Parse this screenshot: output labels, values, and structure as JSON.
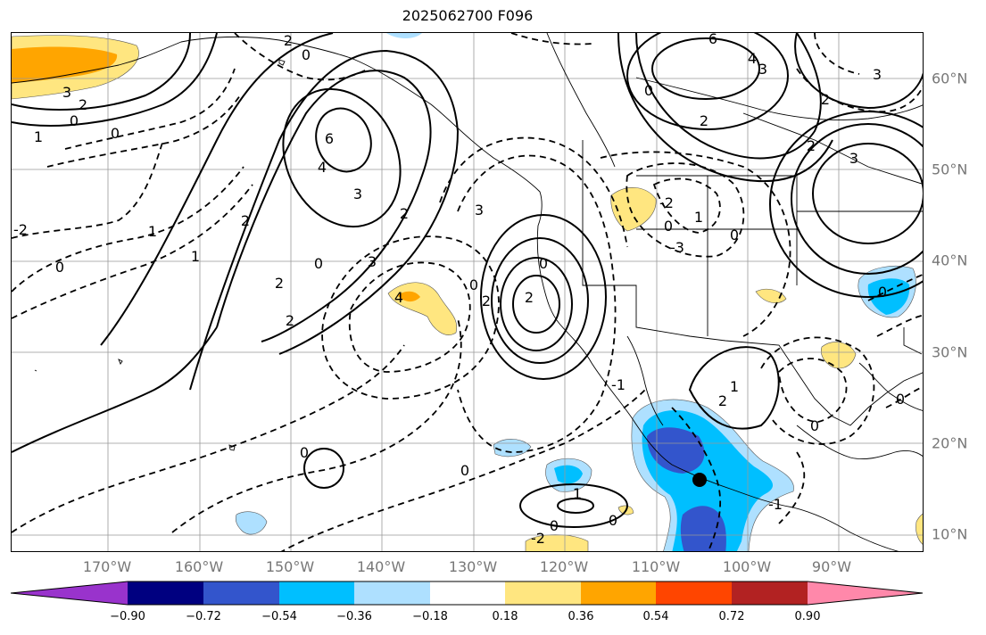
{
  "title": "2025062700 F096",
  "longitude_labels": [
    "170°W",
    "160°W",
    "150°W",
    "140°W",
    "130°W",
    "120°W",
    "110°W",
    "100°W",
    "90°W"
  ],
  "latitude_labels": [
    "60°N",
    "50°N",
    "40°N",
    "30°N",
    "20°N",
    "10°N"
  ],
  "colorbar": {
    "colors": [
      "#9933cc",
      "#000080",
      "#3355cc",
      "#00bfff",
      "#aee0ff",
      "#ffffff",
      "#ffe680",
      "#ffa500",
      "#ff4500",
      "#b22222",
      "#ff88aa"
    ],
    "tick_labels": [
      "−0.90",
      "−0.72",
      "−0.54",
      "−0.36",
      "−0.18",
      "0.18",
      "0.36",
      "0.54",
      "0.72",
      "0.90"
    ]
  },
  "contour_labels": [
    "2",
    "0",
    "3",
    "2",
    "0",
    "0",
    "1",
    "6",
    "4",
    "3",
    "2",
    "1",
    "2",
    "0",
    "3",
    "4",
    "2",
    "0",
    "0",
    "2",
    "2",
    "0",
    "3",
    "1",
    "2",
    "0",
    "0",
    "1",
    "0",
    "6",
    "4",
    "3",
    "2",
    "0",
    "3",
    "2",
    "3",
    "2",
    "0",
    "2",
    "1",
    "0",
    "0",
    "0",
    "0",
    "1",
    "0",
    "-3",
    "-2",
    "-2",
    "-2",
    "-1",
    "-1"
  ],
  "marker": "storm-center"
}
